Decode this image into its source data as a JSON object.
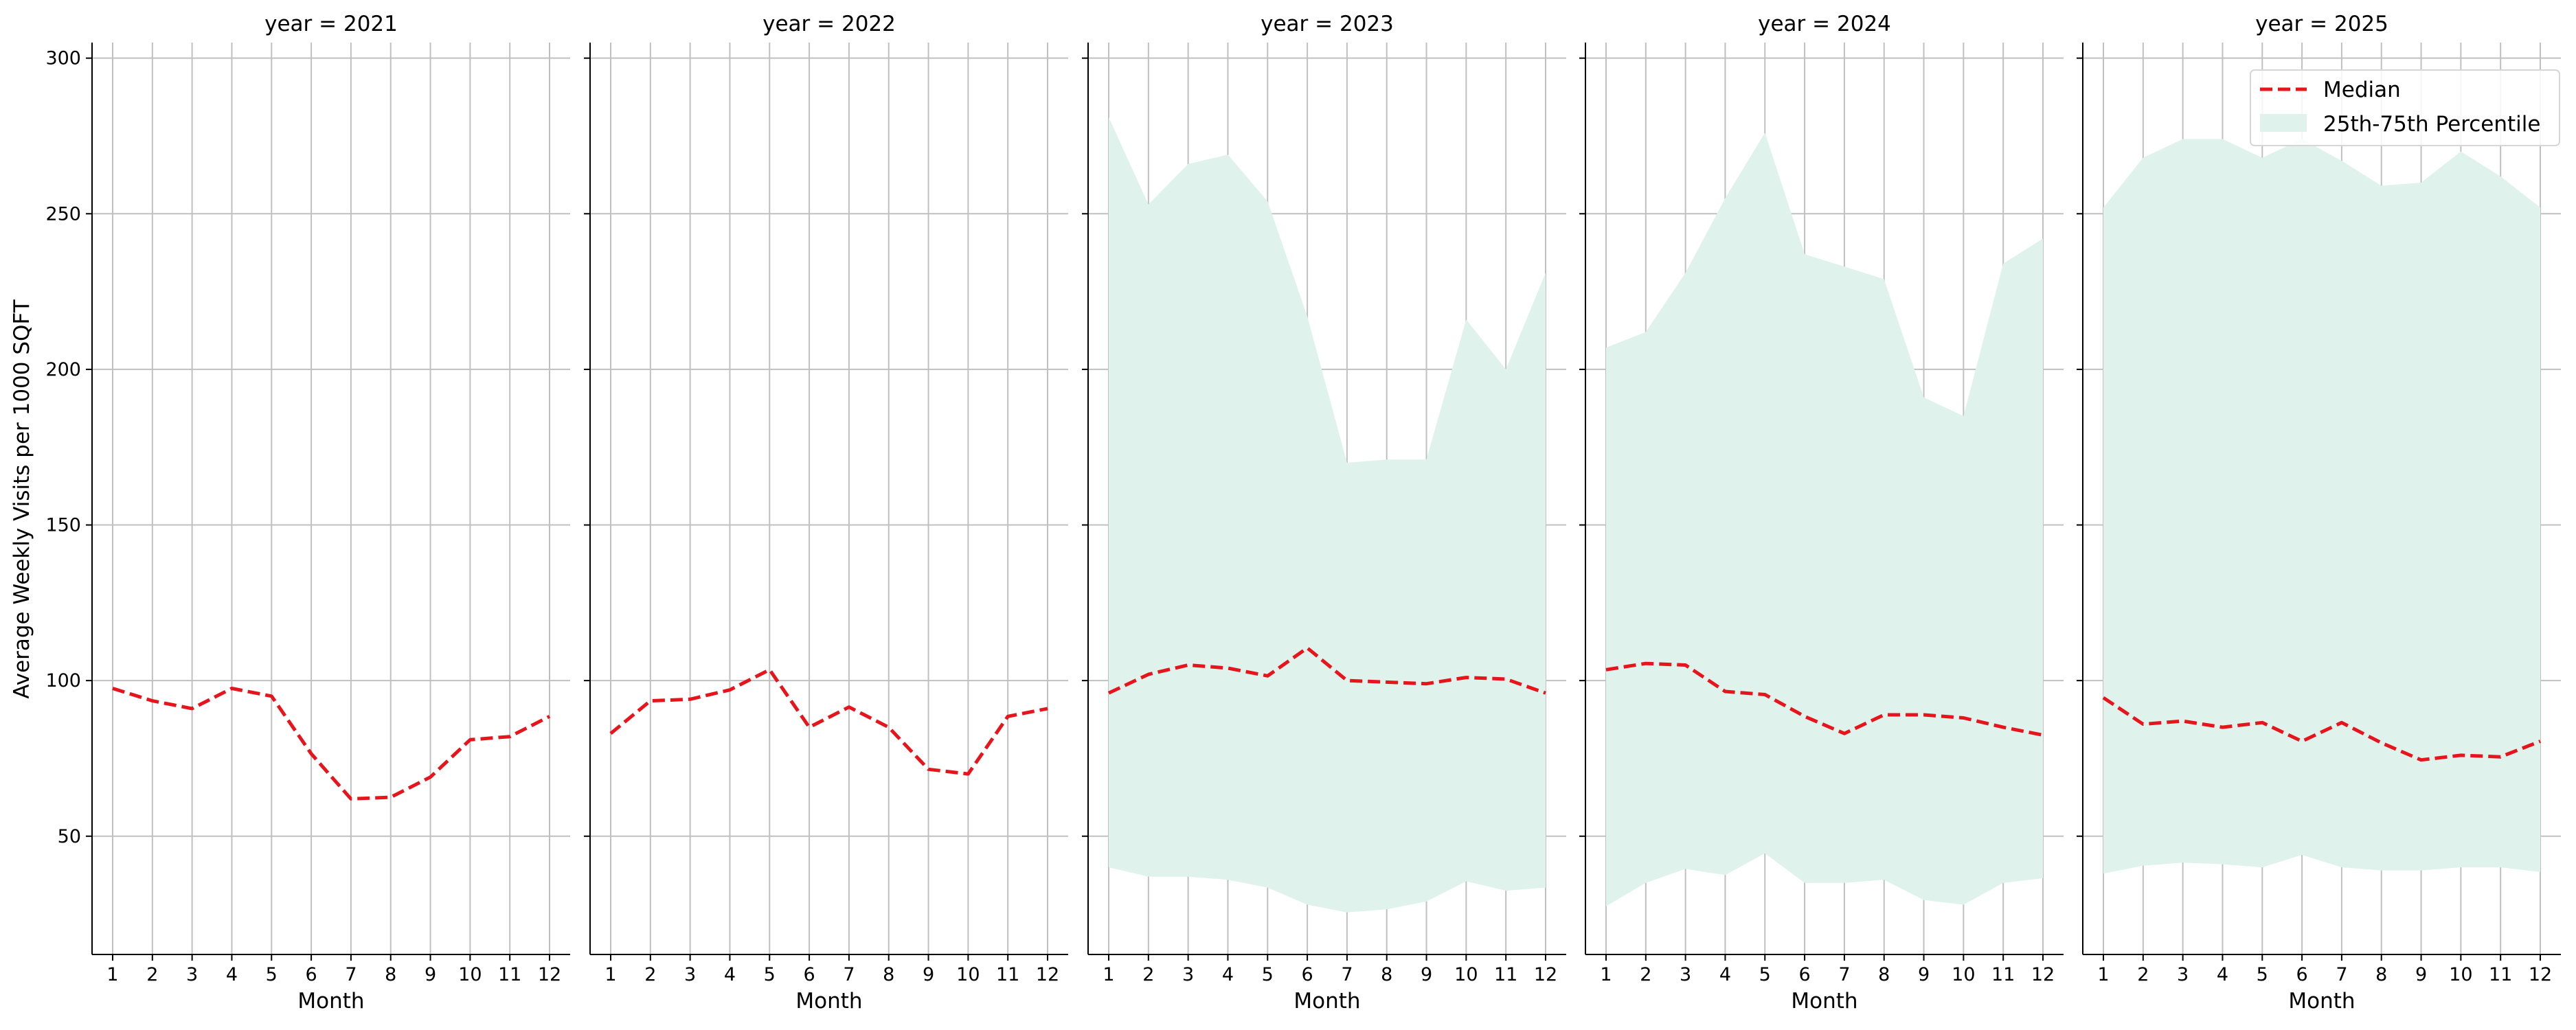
{
  "chart_data": {
    "type": "line",
    "ylabel": "Average Weekly Visits per 1000 SQFT",
    "xlabel": "Month",
    "ylim": [
      12,
      305
    ],
    "yticks": [
      50,
      100,
      150,
      200,
      250,
      300
    ],
    "x": [
      1,
      2,
      3,
      4,
      5,
      6,
      7,
      8,
      9,
      10,
      11,
      12
    ],
    "grid": true,
    "legend": {
      "placement": "top-right",
      "entries": [
        {
          "label": "Median",
          "kind": "line",
          "color": "#e8141c",
          "dash": "dashed"
        },
        {
          "label": "25th-75th Percentile",
          "kind": "area",
          "color": "#dff2ec"
        }
      ]
    },
    "colors": {
      "median": "#e8141c",
      "band": "#dff2ec",
      "grid": "#c0c0c0"
    },
    "panels": [
      {
        "title": "year = 2021",
        "median": [
          97.5,
          93.5,
          91,
          97.5,
          95,
          76.5,
          62,
          62.5,
          69,
          81,
          82,
          88.5
        ],
        "p25": null,
        "p75": null
      },
      {
        "title": "year = 2022",
        "median": [
          83,
          93.5,
          94,
          97,
          103.5,
          85,
          91.5,
          85,
          71.5,
          70,
          88.5,
          91
        ],
        "p25": null,
        "p75": null
      },
      {
        "title": "year = 2023",
        "median": [
          96,
          102,
          105,
          104,
          101.5,
          110.5,
          100,
          99.5,
          99,
          101,
          100.5,
          96
        ],
        "p25": [
          40,
          37,
          37,
          36,
          33.5,
          28,
          25.5,
          26.5,
          29,
          35.5,
          32.5,
          33.5
        ],
        "p75": [
          281,
          253,
          266,
          269,
          254,
          217,
          170,
          171,
          171,
          216,
          200,
          231
        ]
      },
      {
        "title": "year = 2024",
        "median": [
          103.5,
          105.5,
          105,
          96.5,
          95.5,
          88.5,
          83,
          89,
          89,
          88,
          85,
          82.5
        ],
        "p25": [
          27.5,
          35,
          39.5,
          37.5,
          44.5,
          35,
          35,
          36,
          29.5,
          28,
          35,
          36.5
        ],
        "p75": [
          207,
          212,
          231,
          255,
          276,
          237,
          233,
          229,
          191,
          185,
          234,
          242
        ]
      },
      {
        "title": "year = 2025",
        "median": [
          94.5,
          86,
          87,
          85,
          86.5,
          80.5,
          86.5,
          80,
          74.5,
          76,
          75.5,
          80.5
        ],
        "p25": [
          38,
          40.5,
          41.5,
          41,
          40,
          44,
          40,
          39,
          39,
          40,
          40,
          38.5
        ],
        "p75": [
          252,
          268,
          274,
          274,
          268,
          274,
          267,
          259,
          260,
          270,
          262,
          252
        ]
      }
    ]
  }
}
